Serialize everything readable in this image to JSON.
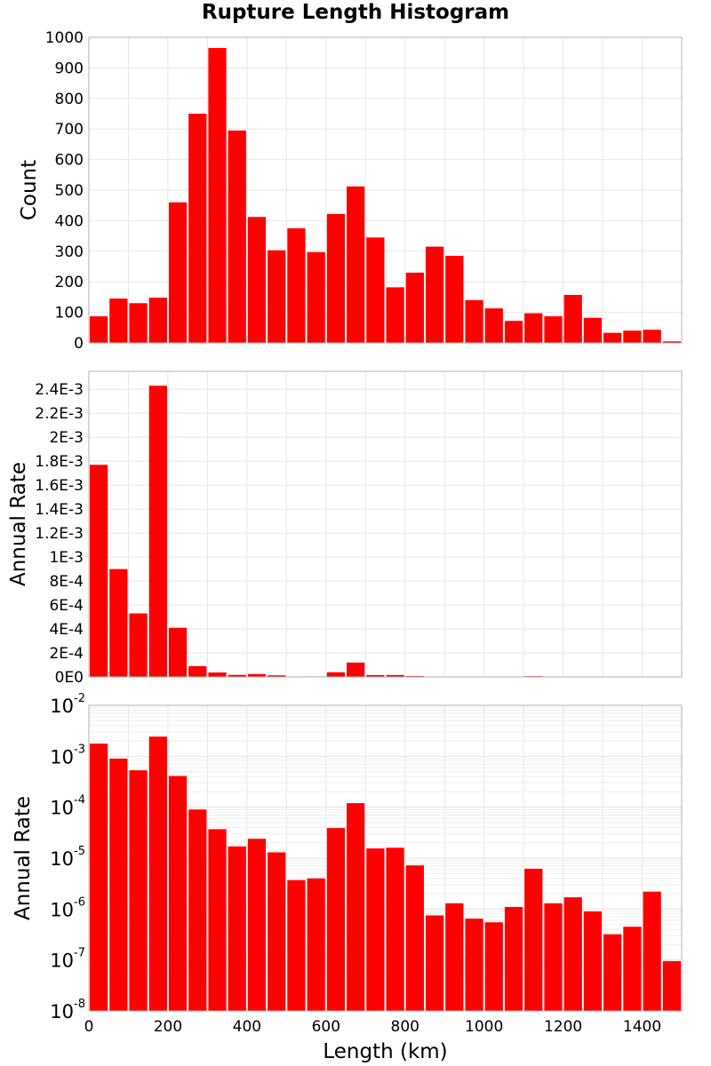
{
  "chart_data": [
    {
      "type": "bar",
      "title": "Rupture Length Histogram",
      "ylabel": "Count",
      "xlabel": "",
      "bin_width": 50,
      "x": [
        25,
        75,
        125,
        175,
        225,
        275,
        325,
        375,
        425,
        475,
        525,
        575,
        625,
        675,
        725,
        775,
        825,
        875,
        925,
        975,
        1025,
        1075,
        1125,
        1175,
        1225,
        1275,
        1325,
        1375,
        1425,
        1475
      ],
      "values": [
        87,
        145,
        130,
        148,
        460,
        750,
        965,
        695,
        412,
        303,
        375,
        297,
        422,
        512,
        345,
        182,
        230,
        315,
        285,
        140,
        113,
        72,
        97,
        87,
        157,
        82,
        33,
        40,
        43,
        5
      ],
      "xlim": [
        0,
        1500
      ],
      "ylim": [
        0,
        1000
      ],
      "yticks": [
        "0",
        "100",
        "200",
        "300",
        "400",
        "500",
        "600",
        "700",
        "800",
        "900",
        "1000"
      ],
      "grid": true,
      "color": "#ff0000"
    },
    {
      "type": "bar",
      "ylabel": "Annual Rate",
      "xlabel": "",
      "bin_width": 50,
      "x": [
        25,
        75,
        125,
        175,
        225,
        275,
        325,
        375,
        425,
        475,
        525,
        575,
        625,
        675,
        725,
        775,
        825,
        875,
        925,
        975,
        1025,
        1075,
        1125,
        1175,
        1225,
        1275,
        1325,
        1375,
        1425,
        1475
      ],
      "values": [
        0.00177,
        0.0009,
        0.00053,
        0.00243,
        0.00041,
        9e-05,
        3.7e-05,
        1.7e-05,
        2.4e-05,
        1.3e-05,
        3.7e-06,
        4e-06,
        3.9e-05,
        0.00012,
        1.55e-05,
        1.6e-05,
        7.2e-06,
        7.5e-07,
        1.3e-06,
        6.5e-07,
        5.5e-07,
        1.1e-06,
        6.2e-06,
        1.3e-06,
        1.7e-06,
        9e-07,
        3.2e-07,
        4.5e-07,
        2.2e-06,
        9.5e-08
      ],
      "xlim": [
        0,
        1500
      ],
      "ylim": [
        0,
        0.00255
      ],
      "yticks": [
        "0E0",
        "2E-4",
        "4E-4",
        "6E-4",
        "8E-4",
        "1E-3",
        "1.2E-3",
        "1.4E-3",
        "1.6E-3",
        "1.8E-3",
        "2E-3",
        "2.2E-3",
        "2.4E-3"
      ],
      "grid": true,
      "color": "#ff0000"
    },
    {
      "type": "bar",
      "ylabel": "Annual Rate",
      "xlabel": "Length (km)",
      "yscale": "log",
      "bin_width": 50,
      "x": [
        25,
        75,
        125,
        175,
        225,
        275,
        325,
        375,
        425,
        475,
        525,
        575,
        625,
        675,
        725,
        775,
        825,
        875,
        925,
        975,
        1025,
        1075,
        1125,
        1175,
        1225,
        1275,
        1325,
        1375,
        1425,
        1475
      ],
      "values": [
        0.00177,
        0.0009,
        0.00053,
        0.00243,
        0.00041,
        9e-05,
        3.7e-05,
        1.7e-05,
        2.4e-05,
        1.3e-05,
        3.7e-06,
        4e-06,
        3.9e-05,
        0.00012,
        1.55e-05,
        1.6e-05,
        7.2e-06,
        7.5e-07,
        1.3e-06,
        6.5e-07,
        5.5e-07,
        1.1e-06,
        6.2e-06,
        1.3e-06,
        1.7e-06,
        9e-07,
        3.2e-07,
        4.5e-07,
        2.2e-06,
        9.5e-08
      ],
      "xlim": [
        0,
        1500
      ],
      "ylim": [
        1e-08,
        0.01
      ],
      "yticks": [
        {
          "base": "10",
          "exp": "-8"
        },
        {
          "base": "10",
          "exp": "-7"
        },
        {
          "base": "10",
          "exp": "-6"
        },
        {
          "base": "10",
          "exp": "-5"
        },
        {
          "base": "10",
          "exp": "-4"
        },
        {
          "base": "10",
          "exp": "-3"
        },
        {
          "base": "10",
          "exp": "-2"
        }
      ],
      "xticks": [
        "0",
        "200",
        "400",
        "600",
        "800",
        "1000",
        "1200",
        "1400"
      ],
      "grid": true,
      "color": "#ff0000"
    }
  ]
}
